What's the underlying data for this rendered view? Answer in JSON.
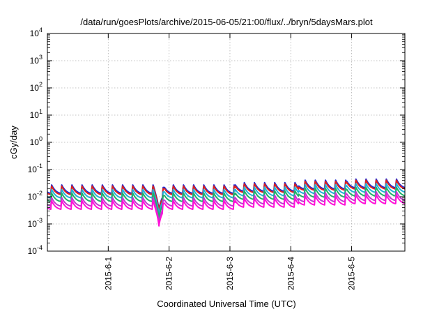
{
  "chart_data": {
    "type": "line",
    "title": "/data/run/goesPlots/archive/2015-06-05/21:00/flux/../bryn/5daysMars.plot",
    "xlabel": "Coordinated Universal Time (UTC)",
    "ylabel": "cGy/day",
    "y_scale": "log",
    "ylim": [
      0.0001,
      10000
    ],
    "y_ticks": [
      {
        "value": 0.0001,
        "base": "10",
        "exp": "-4"
      },
      {
        "value": 0.001,
        "base": "10",
        "exp": "-3"
      },
      {
        "value": 0.01,
        "base": "10",
        "exp": "-2"
      },
      {
        "value": 0.1,
        "base": "10",
        "exp": "-1"
      },
      {
        "value": 1,
        "base": "10",
        "exp": "0"
      },
      {
        "value": 10,
        "base": "10",
        "exp": "1"
      },
      {
        "value": 100,
        "base": "10",
        "exp": "2"
      },
      {
        "value": 1000,
        "base": "10",
        "exp": "3"
      },
      {
        "value": 10000,
        "base": "10",
        "exp": "4"
      }
    ],
    "xlim": [
      "2015-05-31 00:00",
      "2015-06-05 21:00"
    ],
    "x_ticks": [
      {
        "value": "2015-06-01 00:00",
        "label": "2015-6-1"
      },
      {
        "value": "2015-06-02 00:00",
        "label": "2015-6-2"
      },
      {
        "value": "2015-06-03 00:00",
        "label": "2015-6-3"
      },
      {
        "value": "2015-06-04 00:00",
        "label": "2015-6-4"
      },
      {
        "value": "2015-06-05 00:00",
        "label": "2015-6-5"
      }
    ],
    "grid": true,
    "legend": "none",
    "series": [
      {
        "color": "#1a2bd8",
        "scale": 1.0
      },
      {
        "color": "#e0201a",
        "scale": 0.9
      },
      {
        "color": "#22b0d8",
        "scale": 0.68
      },
      {
        "color": "#20b068",
        "scale": 0.5
      },
      {
        "color": "#c03ad0",
        "scale": 0.34
      },
      {
        "color": "#ff10d8",
        "scale": 0.26
      }
    ]
  }
}
